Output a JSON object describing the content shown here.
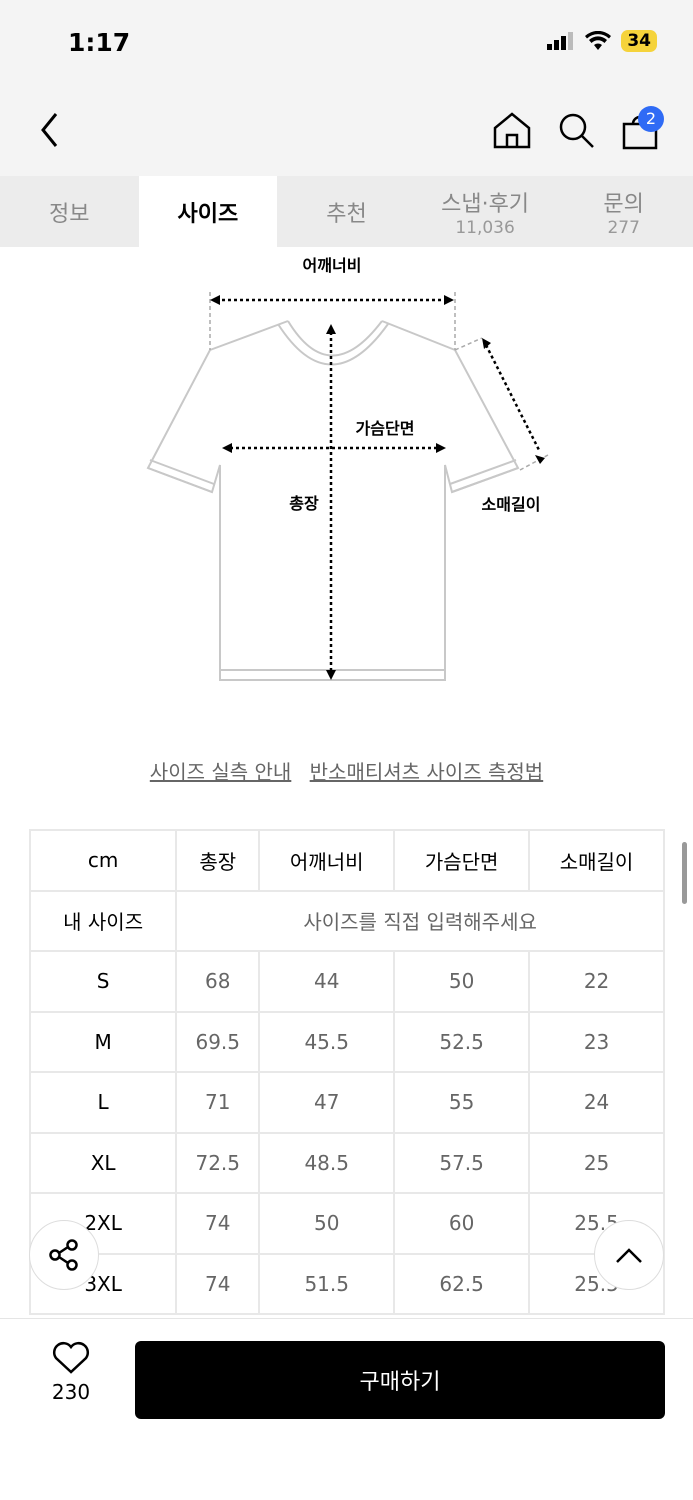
{
  "status": {
    "time": "1:17",
    "battery": "34"
  },
  "nav": {
    "cart_count": "2"
  },
  "tabs": [
    {
      "label": "정보"
    },
    {
      "label": "사이즈",
      "active": true
    },
    {
      "label": "추천"
    },
    {
      "label": "스냅·후기",
      "count": "11,036"
    },
    {
      "label": "문의",
      "count": "277"
    }
  ],
  "diagram": {
    "shoulder": "어깨너비",
    "chest": "가슴단면",
    "length": "총장",
    "sleeve": "소매길이"
  },
  "links": {
    "guide": "사이즈 실측 안내",
    "method": "반소매티셔츠 사이즈 측정법"
  },
  "table": {
    "headers": [
      "cm",
      "총장",
      "어깨너비",
      "가슴단면",
      "소매길이"
    ],
    "my_size": {
      "label": "내 사이즈",
      "placeholder": "사이즈를 직접 입력해주세요"
    },
    "rows": [
      [
        "S",
        "68",
        "44",
        "50",
        "22"
      ],
      [
        "M",
        "69.5",
        "45.5",
        "52.5",
        "23"
      ],
      [
        "L",
        "71",
        "47",
        "55",
        "24"
      ],
      [
        "XL",
        "72.5",
        "48.5",
        "57.5",
        "25"
      ],
      [
        "2XL",
        "74",
        "50",
        "60",
        "25.5"
      ],
      [
        "3XL",
        "74",
        "51.5",
        "62.5",
        "25.5"
      ]
    ]
  },
  "bottom": {
    "likes": "230",
    "buy": "구매하기"
  }
}
